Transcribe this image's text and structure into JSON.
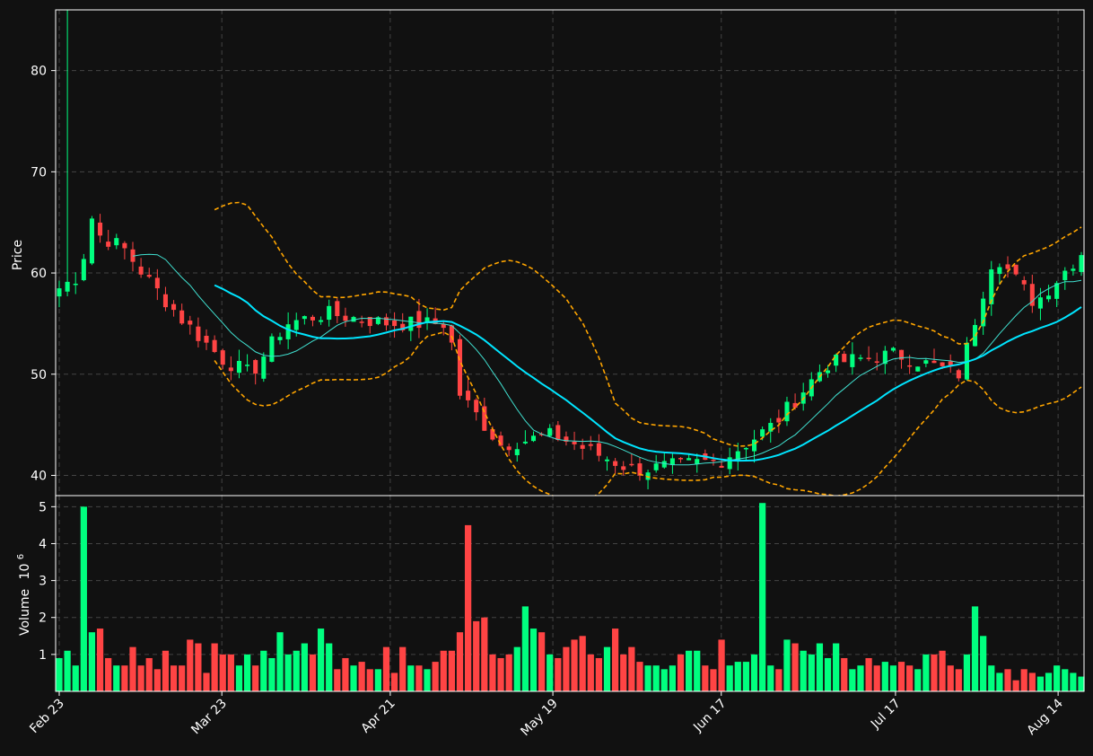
{
  "chart_data": [
    {
      "type": "candlestick",
      "panel": "price",
      "ylabel": "Price",
      "ylim": [
        38,
        86
      ],
      "yticks": [
        40,
        50,
        60,
        70,
        80
      ],
      "grid": true,
      "colors": {
        "up": "#00ff7f",
        "down": "#ff4444",
        "sma_fast": "#40e0d0",
        "sma_slow": "#00e5ff",
        "bands": "#ffa500",
        "background": "#111111"
      },
      "overlays": [
        "Moving average (fast)",
        "Moving average (slow)",
        "Bollinger bands upper",
        "Bollinger bands lower"
      ],
      "approx_close_path": [
        {
          "date": "2023-02-23",
          "close": 58.5
        },
        {
          "date": "2023-02-27",
          "close": 60
        },
        {
          "date": "2023-02-28",
          "close": 68
        },
        {
          "date": "2023-03-01",
          "close": 64
        },
        {
          "date": "2023-03-06",
          "close": 62.5
        },
        {
          "date": "2023-03-10",
          "close": 59.5
        },
        {
          "date": "2023-03-16",
          "close": 55.5
        },
        {
          "date": "2023-03-23",
          "close": 51.5
        },
        {
          "date": "2023-03-28",
          "close": 50
        },
        {
          "date": "2023-04-03",
          "close": 55
        },
        {
          "date": "2023-04-10",
          "close": 56
        },
        {
          "date": "2023-04-21",
          "close": 55
        },
        {
          "date": "2023-05-01",
          "close": 55
        },
        {
          "date": "2023-05-03",
          "close": 48
        },
        {
          "date": "2023-05-10",
          "close": 43
        },
        {
          "date": "2023-05-19",
          "close": 44
        },
        {
          "date": "2023-06-02",
          "close": 40.5
        },
        {
          "date": "2023-06-17",
          "close": 41.5
        },
        {
          "date": "2023-06-26",
          "close": 45
        },
        {
          "date": "2023-07-05",
          "close": 51
        },
        {
          "date": "2023-07-17",
          "close": 52
        },
        {
          "date": "2023-07-28",
          "close": 50
        },
        {
          "date": "2023-08-03",
          "close": 62
        },
        {
          "date": "2023-08-10",
          "close": 57
        },
        {
          "date": "2023-08-18",
          "close": 62
        }
      ]
    },
    {
      "type": "bar",
      "panel": "volume",
      "ylabel": "Volume",
      "ylabel_exponent": "10",
      "ylabel_exponent_power": "6",
      "ylim": [
        0,
        5.3
      ],
      "yticks": [
        1,
        2,
        3,
        4,
        5
      ],
      "grid": true,
      "values_millions": [
        0.9,
        1.1,
        0.7,
        5.0,
        1.6,
        1.7,
        0.9,
        0.7,
        0.7,
        1.2,
        0.7,
        0.9,
        0.6,
        1.1,
        0.7,
        0.7,
        1.4,
        1.3,
        0.5,
        1.3,
        1.0,
        1.0,
        0.7,
        1.0,
        0.7,
        1.1,
        0.9,
        1.6,
        1.0,
        1.1,
        1.3,
        1.0,
        1.7,
        1.3,
        0.6,
        0.9,
        0.7,
        0.8,
        0.6,
        0.6,
        1.2,
        0.5,
        1.2,
        0.7,
        0.7,
        0.6,
        0.8,
        1.1,
        1.1,
        1.6,
        4.5,
        1.9,
        2.0,
        1.0,
        0.9,
        1.0,
        1.2,
        2.3,
        1.7,
        1.6,
        1.0,
        0.9,
        1.2,
        1.4,
        1.5,
        1.0,
        0.9,
        1.2,
        1.7,
        1.0,
        1.2,
        0.8,
        0.7,
        0.7,
        0.6,
        0.7,
        1.0,
        1.1,
        1.1,
        0.7,
        0.6,
        1.4,
        0.7,
        0.8,
        0.8,
        1.0,
        5.1,
        0.7,
        0.6,
        1.4,
        1.3,
        1.1,
        1.0,
        1.3,
        0.9,
        1.3,
        0.9,
        0.6,
        0.7,
        0.9,
        0.7,
        0.8,
        0.7,
        0.8,
        0.7,
        0.6,
        1.0,
        1.0,
        1.1,
        0.7,
        0.6,
        1.0,
        2.3,
        1.5,
        0.7,
        0.5,
        0.6,
        0.3,
        0.6,
        0.5,
        0.4,
        0.5,
        0.7,
        0.6,
        0.5,
        0.4
      ]
    }
  ],
  "xaxis": {
    "tick_labels": [
      "Feb 23",
      "Mar 23",
      "Apr 21",
      "May 19",
      "Jun 17",
      "Jul 17",
      "Aug 14"
    ]
  }
}
